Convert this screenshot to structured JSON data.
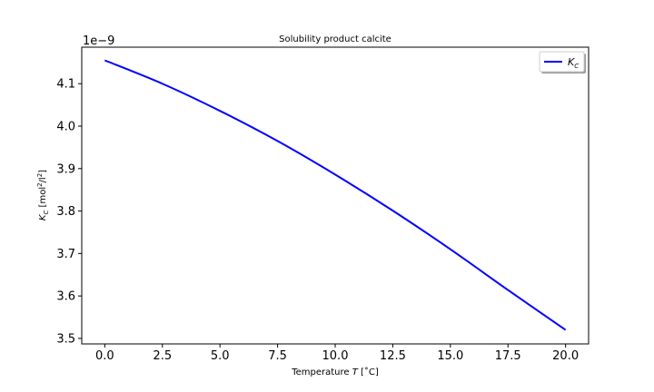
{
  "chart_data": {
    "type": "line",
    "title": "Solubility product calcite",
    "xlabel": "Temperature T [˚C]",
    "ylabel": "K_C [mol²/l²]",
    "y_offset_label": "1e−9",
    "xlim": [
      -1.0,
      21.0
    ],
    "ylim": [
      3.487,
      4.186
    ],
    "xticks": [
      "0.0",
      "2.5",
      "5.0",
      "7.5",
      "10.0",
      "12.5",
      "15.0",
      "17.5",
      "20.0"
    ],
    "xtick_values": [
      0,
      2.5,
      5,
      7.5,
      10,
      12.5,
      15,
      17.5,
      20
    ],
    "yticks": [
      "3.5",
      "3.6",
      "3.7",
      "3.8",
      "3.9",
      "4.0",
      "4.1"
    ],
    "ytick_values": [
      3.5,
      3.6,
      3.7,
      3.8,
      3.9,
      4.0,
      4.1
    ],
    "grid": false,
    "legend_position": "top-right",
    "series": [
      {
        "name": "K_C",
        "color": "#0000ff",
        "x": [
          0,
          2.5,
          5,
          7.5,
          10,
          12.5,
          15,
          17.5,
          20
        ],
        "y": [
          4.155,
          4.1,
          4.036,
          3.965,
          3.886,
          3.801,
          3.71,
          3.614,
          3.52
        ]
      }
    ]
  }
}
